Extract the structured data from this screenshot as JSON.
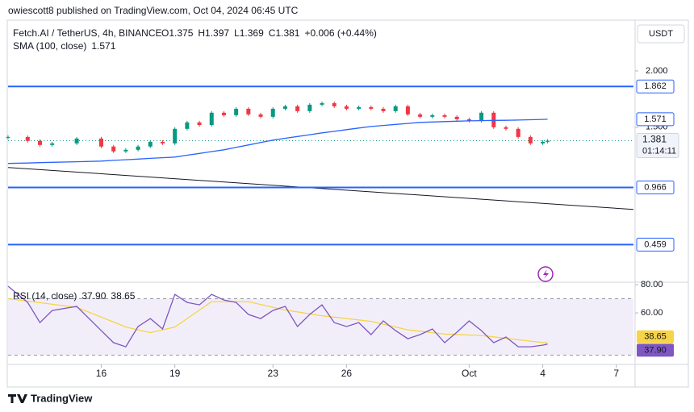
{
  "header": {
    "byline": "owiescott8 published on TradingView.com, Oct 04, 2024 06:45 UTC",
    "ohlc": [
      "O1.375",
      "H1.397",
      "L1.369",
      "C1.381",
      "+0.006 (+0.44%)"
    ],
    "currency": "USDT"
  },
  "footer": "TradingView",
  "chart_data": [
    {
      "type": "candlestick",
      "x": [
        -3.8,
        -3,
        -2.5,
        -2,
        -1,
        0,
        0.5,
        1,
        1.5,
        2,
        2.5,
        3,
        3.5,
        4,
        4.5,
        5,
        5.5,
        6,
        6.5,
        7,
        7.5,
        8,
        8.5,
        9,
        9.5,
        10,
        10.5,
        11,
        11.5,
        12,
        12.5,
        13,
        13.5,
        14,
        14.5,
        15,
        15.5,
        16,
        16.5,
        17,
        17.5,
        18,
        18.2
      ],
      "series": [
        {
          "name": "Fetch.AI / TetherUS, 4h, BINANCE",
          "color": "#089981",
          "down_color": "#f23645",
          "values": [
            1.414,
            1.379,
            1.343,
            1.357,
            1.4,
            1.329,
            1.286,
            1.3,
            1.329,
            1.371,
            1.357,
            1.486,
            1.543,
            1.52,
            1.629,
            1.607,
            1.664,
            1.614,
            1.593,
            1.664,
            1.686,
            1.643,
            1.7,
            1.714,
            1.686,
            1.664,
            1.679,
            1.664,
            1.643,
            1.686,
            1.614,
            1.593,
            1.607,
            1.593,
            1.571,
            1.557,
            1.629,
            1.5,
            1.486,
            1.414,
            1.357,
            1.371,
            1.381
          ]
        },
        {
          "name": "SMA (100, close)",
          "color": "#2962ff",
          "values": [
            1.179,
            1.183,
            1.186,
            1.189,
            1.194,
            1.2,
            1.206,
            1.212,
            1.218,
            1.224,
            1.23,
            1.236,
            1.252,
            1.268,
            1.284,
            1.3,
            1.322,
            1.343,
            1.365,
            1.386,
            1.402,
            1.418,
            1.434,
            1.45,
            1.464,
            1.479,
            1.493,
            1.507,
            1.516,
            1.525,
            1.534,
            1.543,
            1.547,
            1.55,
            1.554,
            1.557,
            1.559,
            1.561,
            1.562,
            1.564,
            1.567,
            1.57,
            1.571
          ]
        }
      ],
      "levels": [
        1.862,
        0.966,
        0.459
      ],
      "level_color": "#2962ff",
      "trendline": {
        "x": [
          -3.8,
          21.7
        ],
        "values": [
          1.143,
          0.771
        ]
      },
      "countdown": "01:14:11",
      "xlim": [
        -3.8,
        21.7
      ],
      "xticks": [
        {
          "value": 0,
          "label": "16"
        },
        {
          "value": 3,
          "label": "19"
        },
        {
          "value": 7,
          "label": "23"
        },
        {
          "value": 10,
          "label": "26"
        },
        {
          "value": 15,
          "label": "Oct"
        },
        {
          "value": 18,
          "label": "4"
        },
        {
          "value": 21,
          "label": "7"
        }
      ],
      "ylim": [
        0.14,
        2.4
      ],
      "yticks": [
        {
          "value": 2,
          "label": "2.000"
        },
        {
          "value": 1.5,
          "label": "1.500"
        }
      ]
    },
    {
      "type": "line",
      "x": [
        -3.8,
        -3,
        -2.5,
        -2,
        -1,
        0,
        0.5,
        1,
        1.5,
        2,
        2.5,
        3,
        3.5,
        4,
        4.5,
        5,
        5.5,
        6,
        6.5,
        7,
        7.5,
        8,
        8.5,
        9,
        9.5,
        10,
        10.5,
        11,
        11.5,
        12,
        12.5,
        13,
        13.5,
        14,
        14.5,
        15,
        15.5,
        16,
        16.5,
        17,
        17.5,
        18,
        18.2
      ],
      "legend": "RSI (14, close)",
      "legend_values": [
        "37.90",
        "38.65"
      ],
      "series": [
        {
          "name": "RSI",
          "color": "#7e57c2",
          "values": [
            78.9,
            67.4,
            53.1,
            61.7,
            64.6,
            47.4,
            38.9,
            36,
            50.3,
            56,
            48.6,
            73.1,
            67.4,
            65.7,
            73.1,
            69.1,
            67.4,
            58.9,
            56,
            61.7,
            64.6,
            50.3,
            58.9,
            65.7,
            53.1,
            50.3,
            53.1,
            44.6,
            54.3,
            47.4,
            41.7,
            44.6,
            48.6,
            38.9,
            46.3,
            54.3,
            47.4,
            38.9,
            42.9,
            36,
            36,
            37.1,
            37.9
          ]
        },
        {
          "name": "RSI MA",
          "color": "#f7d34a",
          "values": [
            70,
            68.3,
            67.2,
            66.1,
            64,
            57,
            53.5,
            50,
            48,
            46,
            48,
            50,
            56,
            62,
            68,
            68,
            68,
            68,
            66,
            64,
            62,
            60.7,
            59.3,
            58,
            57,
            56,
            55,
            54,
            52,
            50,
            48,
            47,
            46,
            45,
            44.7,
            44.3,
            44,
            43,
            42,
            41,
            40,
            39,
            38.65
          ]
        }
      ],
      "band": [
        30,
        70
      ],
      "xlim": [
        -3.8,
        21.7
      ],
      "ylim": [
        24.6,
        80.6
      ],
      "yticks": [
        {
          "value": 80,
          "label": "80.00"
        },
        {
          "value": 60,
          "label": "60.00"
        }
      ]
    }
  ]
}
